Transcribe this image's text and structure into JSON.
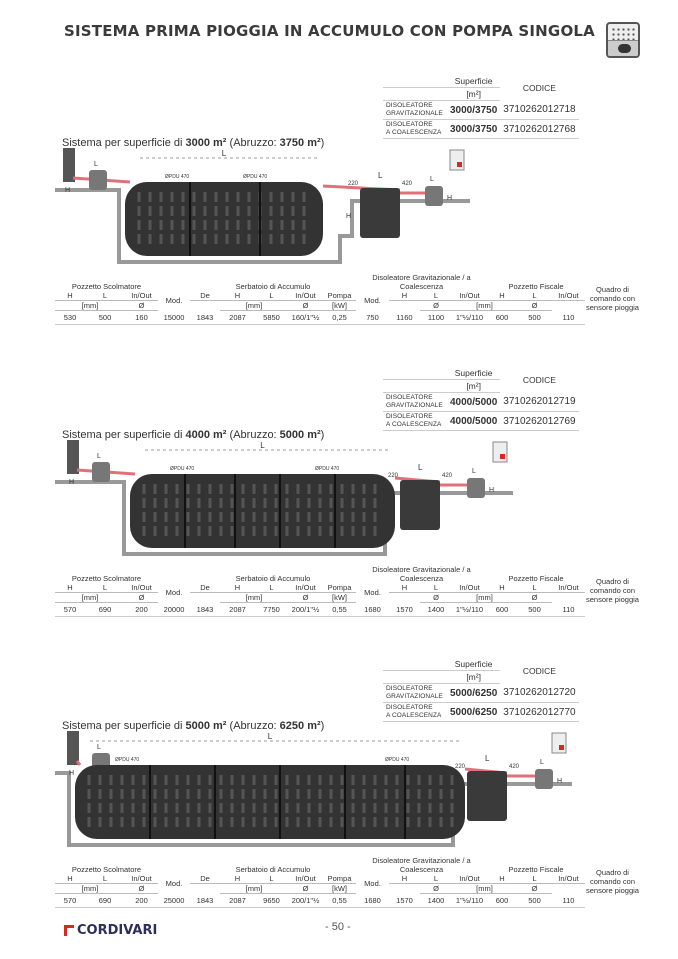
{
  "title": "SISTEMA PRIMA PIOGGIA IN ACCUMULO CON POMPA SINGOLA",
  "icon": "rain-tank-icon",
  "colors": {
    "pipe": "#e0707a",
    "tank": "#333333",
    "concrete": "#bdbdbd",
    "brand": "#d52b1e"
  },
  "code_table_headers": {
    "superficie": "Superficie",
    "unit": "[m²]",
    "codice": "CODICE"
  },
  "diagram_labels": {
    "L": "L",
    "H": "H",
    "pdu": "ØPDU 470",
    "d220": "220",
    "d420": "420"
  },
  "table_headers": {
    "groups": [
      "Pozzetto Scolmatore",
      "Serbatoio di Accumulo",
      "Disoleatore Gravitazionale / a Coalescenza",
      "Pozzetto Fiscale",
      "Quadro di comando con sensore pioggia"
    ],
    "cols": [
      "H",
      "L",
      "In/Out",
      "Mod.",
      "De",
      "H",
      "L",
      "In/Out",
      "Pompa",
      "Mod.",
      "H",
      "L",
      "In/Out",
      "H",
      "L",
      "In/Out"
    ],
    "units": {
      "mm": "[mm]",
      "diam": "Ø",
      "kw": "[kW]"
    }
  },
  "sections": [
    {
      "caption_pre": "Sistema per superficie di ",
      "caption_b1": "3000 m²",
      "caption_mid": " (Abruzzo: ",
      "caption_b2": "3750 m²",
      "caption_post": ")",
      "codes": [
        {
          "label1": "Disoleatore",
          "label2": "Gravitazionale",
          "superficie": "3000/3750",
          "codice": "3710262012718"
        },
        {
          "label1": "Disoleatore",
          "label2": "a coalescenza",
          "superficie": "3000/3750",
          "codice": "3710262012768"
        }
      ],
      "values": [
        "530",
        "500",
        "160",
        "15000",
        "1843",
        "2087",
        "5850",
        "160/1\"½",
        "0,25",
        "750",
        "1160",
        "1100",
        "1\"½/110",
        "600",
        "500",
        "110"
      ]
    },
    {
      "caption_pre": "Sistema per superficie di ",
      "caption_b1": "4000 m²",
      "caption_mid": " (Abruzzo: ",
      "caption_b2": "5000 m²",
      "caption_post": ")",
      "codes": [
        {
          "label1": "Disoleatore",
          "label2": "Gravitazionale",
          "superficie": "4000/5000",
          "codice": "3710262012719"
        },
        {
          "label1": "Disoleatore",
          "label2": "a coalescenza",
          "superficie": "4000/5000",
          "codice": "3710262012769"
        }
      ],
      "values": [
        "570",
        "690",
        "200",
        "20000",
        "1843",
        "2087",
        "7750",
        "200/1\"½",
        "0,55",
        "1680",
        "1570",
        "1400",
        "1\"½/110",
        "600",
        "500",
        "110"
      ]
    },
    {
      "caption_pre": "Sistema per superficie di ",
      "caption_b1": "5000 m²",
      "caption_mid": " (Abruzzo: ",
      "caption_b2": "6250 m²",
      "caption_post": ")",
      "codes": [
        {
          "label1": "Disoleatore",
          "label2": "Gravitazionale",
          "superficie": "5000/6250",
          "codice": "3710262012720"
        },
        {
          "label1": "Disoleatore",
          "label2": "a coalescenza",
          "superficie": "5000/6250",
          "codice": "3710262012770"
        }
      ],
      "values": [
        "570",
        "690",
        "200",
        "25000",
        "1843",
        "2087",
        "9650",
        "200/1\"½",
        "0,55",
        "1680",
        "1570",
        "1400",
        "1\"½/110",
        "600",
        "500",
        "110"
      ]
    }
  ],
  "footer": {
    "brand": "CORDIVARI",
    "page": "- 50 -"
  }
}
